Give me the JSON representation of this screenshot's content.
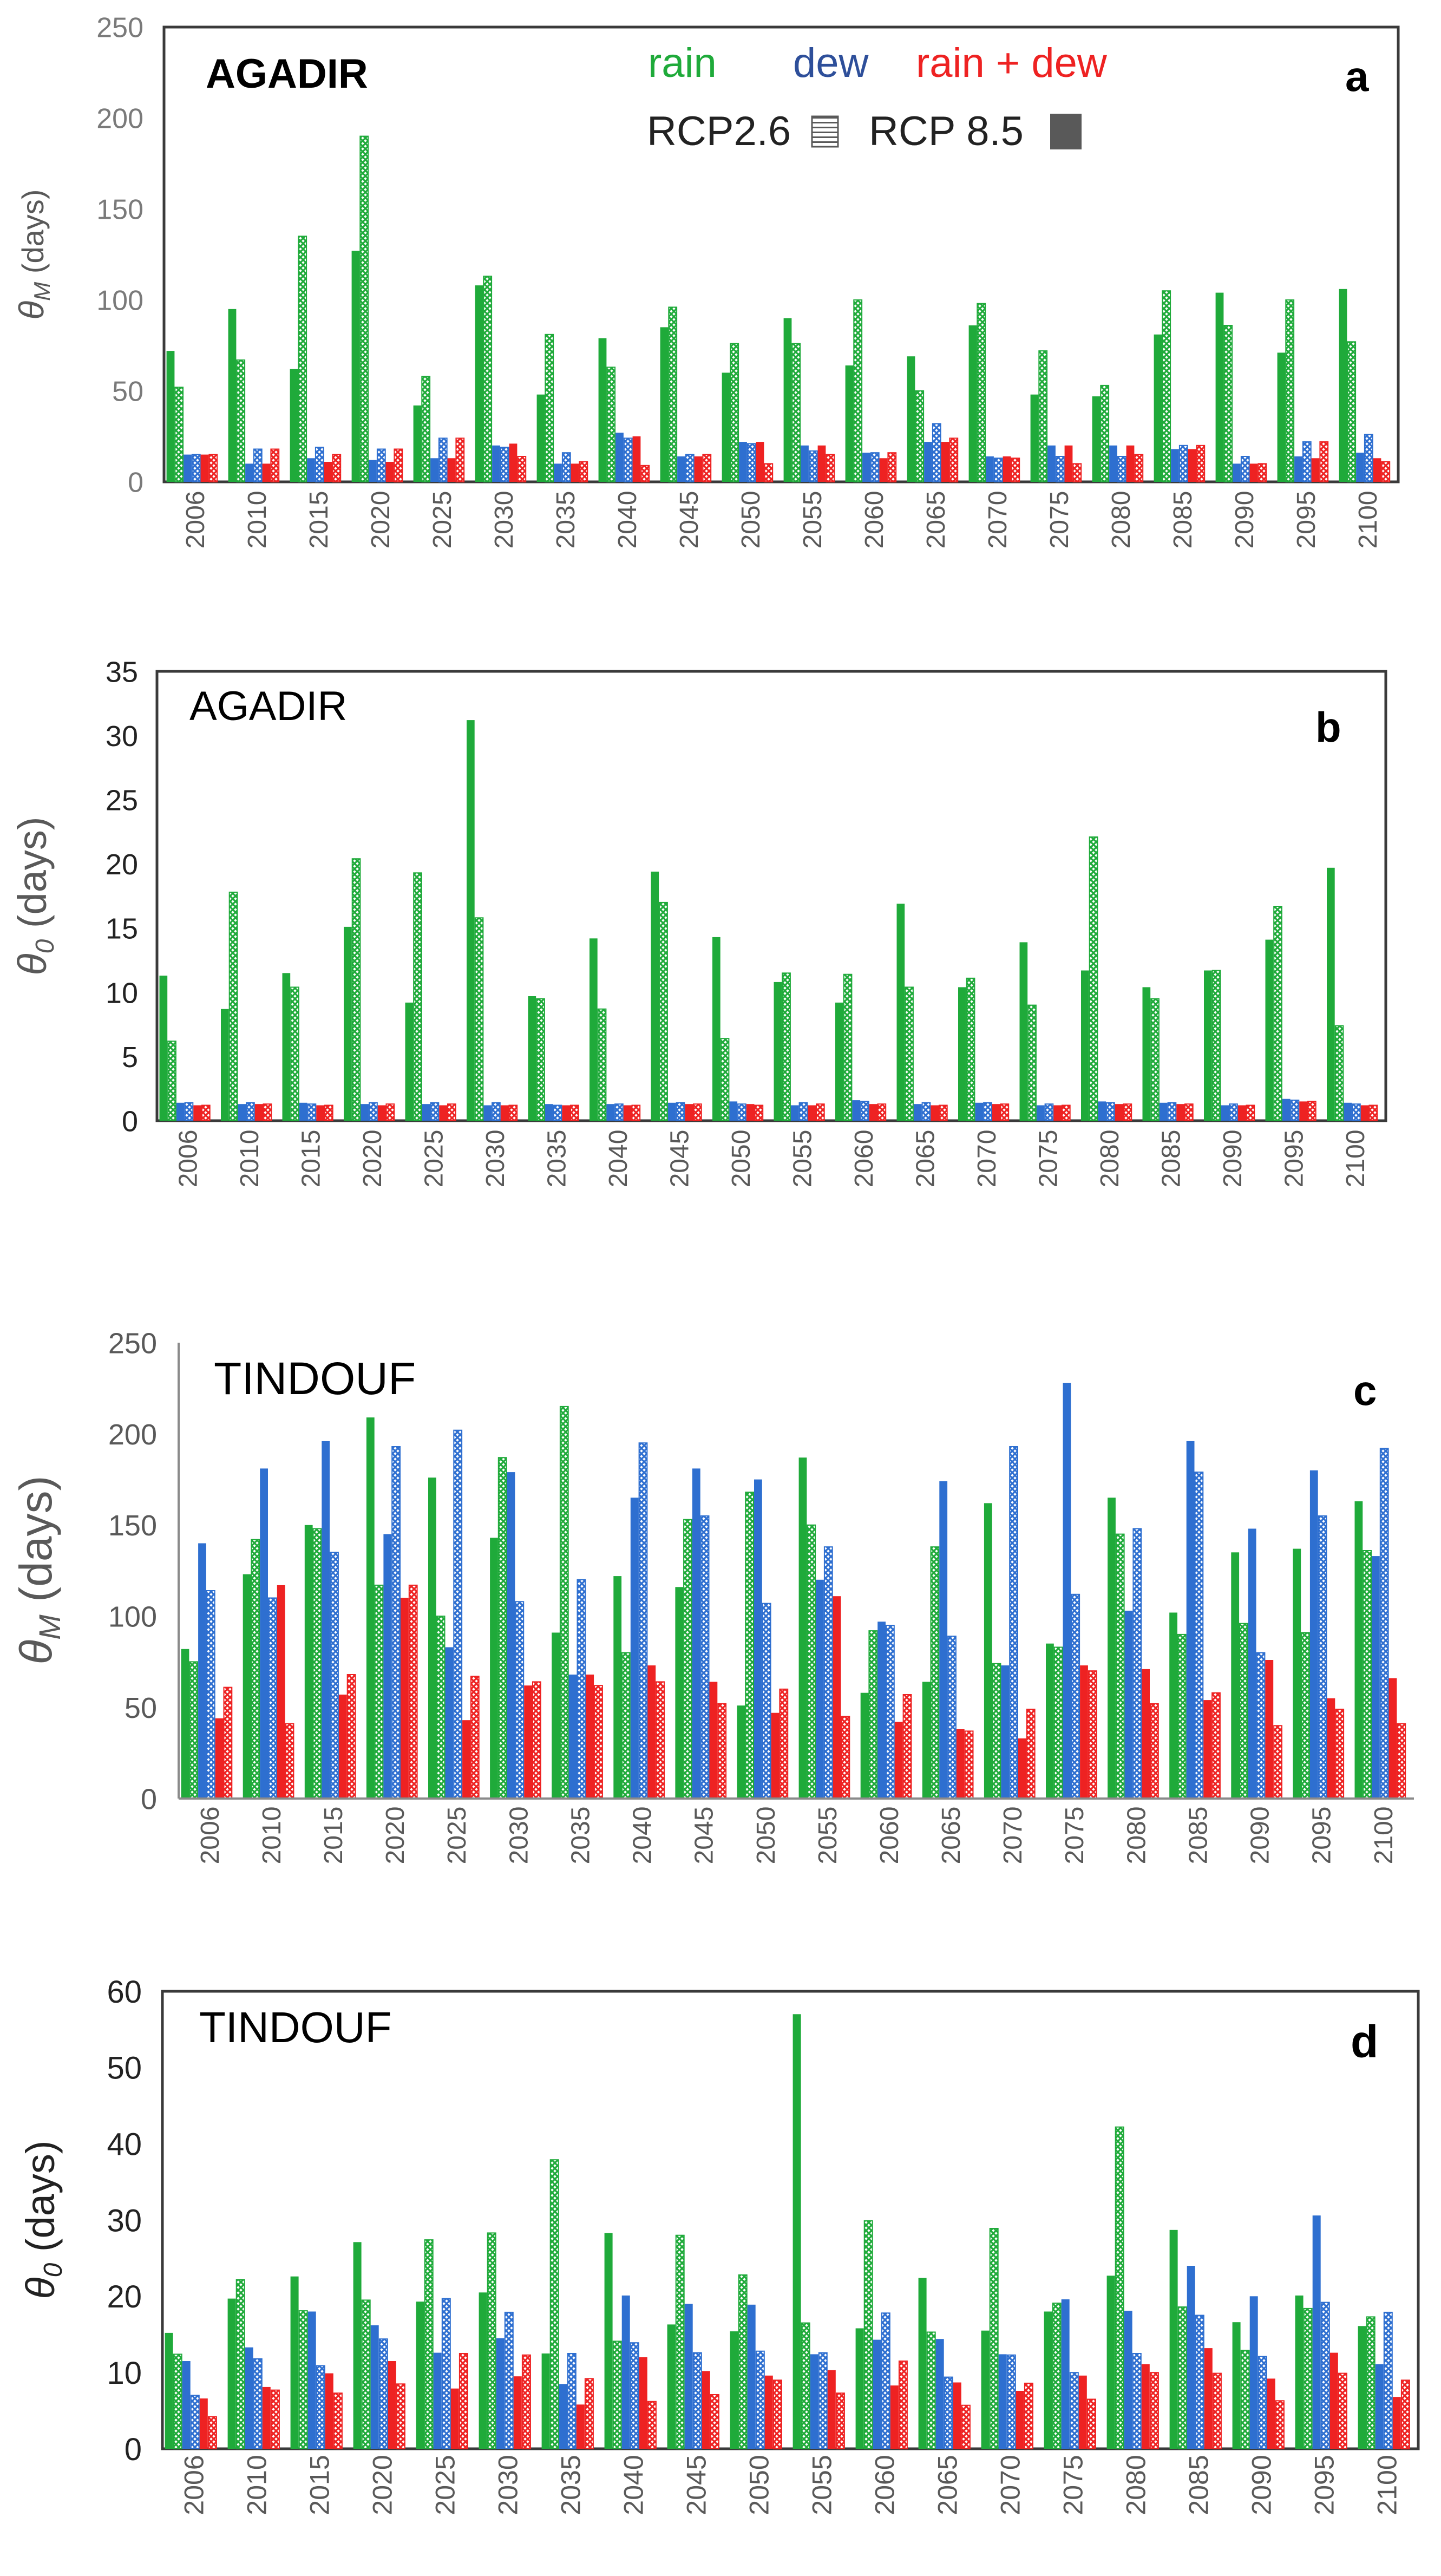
{
  "colors": {
    "rain": "#1faa3a",
    "dew": "#2e6fd0",
    "rain_dew": "#ee2222",
    "legend_square": "#595959"
  },
  "legend": {
    "rain": "rain",
    "dew": "dew",
    "rain_dew": "rain + dew",
    "rcp26": "RCP2.6",
    "rcp85": "RCP 8.5"
  },
  "chart_data": [
    {
      "type": "bar",
      "panel": "a",
      "station": "AGADIR",
      "ylabel_sym": "θ",
      "ylabel_sub": "M",
      "ylabel_unit": " (days)",
      "ylim": [
        0,
        250
      ],
      "yticks": [
        0,
        50,
        100,
        150,
        200,
        250
      ],
      "categories": [
        "2006",
        "2010",
        "2015",
        "2020",
        "2025",
        "2030",
        "2035",
        "2040",
        "2045",
        "2050",
        "2055",
        "2060",
        "2065",
        "2070",
        "2075",
        "2080",
        "2085",
        "2090",
        "2095",
        "2100"
      ],
      "series": [
        {
          "name": "rain RCP 8.5",
          "values": [
            72,
            95,
            62,
            127,
            42,
            108,
            48,
            79,
            85,
            60,
            90,
            64,
            69,
            86,
            48,
            47,
            81,
            104,
            71,
            106
          ]
        },
        {
          "name": "rain RCP2.6",
          "values": [
            52,
            67,
            135,
            190,
            58,
            113,
            81,
            63,
            96,
            76,
            76,
            100,
            50,
            98,
            72,
            53,
            105,
            86,
            100,
            77
          ]
        },
        {
          "name": "dew RCP 8.5",
          "values": [
            15,
            10,
            13,
            12,
            13,
            20,
            10,
            27,
            14,
            22,
            20,
            16,
            22,
            14,
            20,
            20,
            18,
            10,
            14,
            16
          ]
        },
        {
          "name": "dew RCP2.6",
          "values": [
            15,
            18,
            19,
            18,
            24,
            19,
            16,
            24,
            15,
            21,
            17,
            16,
            32,
            13,
            14,
            14,
            20,
            14,
            22,
            26
          ]
        },
        {
          "name": "rain + dew RCP 8.5",
          "values": [
            15,
            10,
            11,
            11,
            13,
            21,
            10,
            25,
            14,
            22,
            20,
            13,
            22,
            14,
            20,
            20,
            18,
            10,
            13,
            13
          ]
        },
        {
          "name": "rain + dew RCP2.6",
          "values": [
            15,
            18,
            15,
            18,
            24,
            14,
            11,
            9,
            15,
            10,
            15,
            16,
            24,
            13,
            10,
            15,
            20,
            10,
            22,
            11
          ]
        }
      ]
    },
    {
      "type": "bar",
      "panel": "b",
      "station": "AGADIR",
      "ylabel_sym": "θ",
      "ylabel_sub": "0",
      "ylabel_unit": " (days)",
      "ylim": [
        0,
        35
      ],
      "yticks": [
        0,
        5,
        10,
        15,
        20,
        25,
        30,
        35
      ],
      "categories": [
        "2006",
        "2010",
        "2015",
        "2020",
        "2025",
        "2030",
        "2035",
        "2040",
        "2045",
        "2050",
        "2055",
        "2060",
        "2065",
        "2070",
        "2075",
        "2080",
        "2085",
        "2090",
        "2095",
        "2100"
      ],
      "series": [
        {
          "name": "rain RCP 8.5",
          "values": [
            11.3,
            8.7,
            11.5,
            15.1,
            9.2,
            31.2,
            9.7,
            14.2,
            19.4,
            14.3,
            10.8,
            9.2,
            16.9,
            10.4,
            13.9,
            11.7,
            10.4,
            11.7,
            14.1,
            19.7
          ]
        },
        {
          "name": "rain RCP2.6",
          "values": [
            6.2,
            17.8,
            10.4,
            20.4,
            19.3,
            15.8,
            9.5,
            8.7,
            17.0,
            6.4,
            11.5,
            11.4,
            10.4,
            11.1,
            9.0,
            22.1,
            9.5,
            11.7,
            16.7,
            7.4
          ]
        },
        {
          "name": "dew RCP 8.5",
          "values": [
            1.4,
            1.3,
            1.4,
            1.3,
            1.3,
            1.2,
            1.3,
            1.3,
            1.4,
            1.5,
            1.2,
            1.6,
            1.3,
            1.4,
            1.2,
            1.5,
            1.4,
            1.2,
            1.7,
            1.4
          ]
        },
        {
          "name": "dew RCP2.6",
          "values": [
            1.4,
            1.4,
            1.3,
            1.4,
            1.4,
            1.4,
            1.2,
            1.3,
            1.4,
            1.3,
            1.4,
            1.5,
            1.4,
            1.4,
            1.3,
            1.4,
            1.4,
            1.3,
            1.6,
            1.3
          ]
        },
        {
          "name": "rain + dew RCP 8.5",
          "values": [
            1.2,
            1.3,
            1.2,
            1.2,
            1.2,
            1.2,
            1.2,
            1.2,
            1.3,
            1.3,
            1.2,
            1.3,
            1.2,
            1.3,
            1.2,
            1.3,
            1.3,
            1.2,
            1.5,
            1.2
          ]
        },
        {
          "name": "rain + dew RCP2.6",
          "values": [
            1.2,
            1.3,
            1.2,
            1.3,
            1.3,
            1.2,
            1.2,
            1.2,
            1.3,
            1.2,
            1.3,
            1.3,
            1.2,
            1.3,
            1.2,
            1.3,
            1.3,
            1.2,
            1.5,
            1.2
          ]
        }
      ]
    },
    {
      "type": "bar",
      "panel": "c",
      "station": "TINDOUF",
      "ylabel_sym": "θ",
      "ylabel_sub": "M",
      "ylabel_unit": " (days)",
      "ylim": [
        0,
        250
      ],
      "yticks": [
        0,
        50,
        100,
        150,
        200,
        250
      ],
      "categories": [
        "2006",
        "2010",
        "2015",
        "2020",
        "2025",
        "2030",
        "2035",
        "2040",
        "2045",
        "2050",
        "2055",
        "2060",
        "2065",
        "2070",
        "2075",
        "2080",
        "2085",
        "2090",
        "2095",
        "2100"
      ],
      "series": [
        {
          "name": "rain RCP 8.5",
          "values": [
            82,
            123,
            150,
            209,
            176,
            143,
            91,
            122,
            116,
            51,
            187,
            58,
            64,
            162,
            85,
            165,
            102,
            135,
            137,
            163
          ]
        },
        {
          "name": "rain RCP2.6",
          "values": [
            75,
            142,
            148,
            117,
            100,
            187,
            215,
            80,
            153,
            168,
            150,
            92,
            138,
            74,
            83,
            145,
            90,
            96,
            91,
            136
          ]
        },
        {
          "name": "dew RCP 8.5",
          "values": [
            140,
            181,
            196,
            145,
            83,
            179,
            68,
            165,
            181,
            175,
            120,
            97,
            174,
            73,
            228,
            103,
            196,
            148,
            180,
            133
          ]
        },
        {
          "name": "dew RCP2.6",
          "values": [
            114,
            110,
            135,
            193,
            202,
            108,
            120,
            195,
            155,
            107,
            138,
            95,
            89,
            193,
            112,
            148,
            179,
            80,
            155,
            192
          ]
        },
        {
          "name": "rain + dew RCP 8.5",
          "values": [
            44,
            117,
            57,
            110,
            43,
            62,
            68,
            73,
            64,
            47,
            111,
            42,
            38,
            33,
            73,
            71,
            54,
            76,
            55,
            66
          ]
        },
        {
          "name": "rain + dew RCP2.6",
          "values": [
            61,
            41,
            68,
            117,
            67,
            64,
            62,
            64,
            52,
            60,
            45,
            57,
            37,
            49,
            70,
            52,
            58,
            40,
            49,
            41
          ]
        }
      ]
    },
    {
      "type": "bar",
      "panel": "d",
      "station": "TINDOUF",
      "ylabel_sym": "θ",
      "ylabel_sub": "0",
      "ylabel_unit": " (days)",
      "ylim": [
        0,
        60
      ],
      "yticks": [
        0,
        10,
        20,
        30,
        40,
        50,
        60
      ],
      "categories": [
        "2006",
        "2010",
        "2015",
        "2020",
        "2025",
        "2030",
        "2035",
        "2040",
        "2045",
        "2050",
        "2055",
        "2060",
        "2065",
        "2070",
        "2075",
        "2080",
        "2085",
        "2090",
        "2095",
        "2100"
      ],
      "series": [
        {
          "name": "rain RCP 8.5",
          "values": [
            15.2,
            19.7,
            22.6,
            27.1,
            19.3,
            20.5,
            12.5,
            28.3,
            16.3,
            15.4,
            57.0,
            15.8,
            22.4,
            15.5,
            18.0,
            22.7,
            28.7,
            16.6,
            20.1,
            16.1
          ]
        },
        {
          "name": "rain RCP2.6",
          "values": [
            12.4,
            22.2,
            18.1,
            19.5,
            27.4,
            28.3,
            37.9,
            14.1,
            28.0,
            22.8,
            16.5,
            29.9,
            15.3,
            28.9,
            19.1,
            42.2,
            18.6,
            12.9,
            18.4,
            17.3
          ]
        },
        {
          "name": "dew RCP 8.5",
          "values": [
            11.5,
            13.3,
            18.0,
            16.2,
            12.6,
            14.5,
            8.5,
            20.1,
            19.0,
            18.9,
            12.4,
            14.3,
            14.4,
            12.4,
            19.6,
            18.1,
            24.0,
            20.0,
            30.6,
            11.1
          ]
        },
        {
          "name": "dew RCP2.6",
          "values": [
            7.0,
            11.8,
            10.9,
            14.4,
            19.7,
            17.9,
            12.5,
            13.9,
            12.6,
            12.8,
            12.6,
            17.8,
            9.4,
            12.3,
            10.0,
            12.5,
            17.5,
            12.1,
            19.2,
            17.9
          ]
        },
        {
          "name": "rain + dew RCP 8.5",
          "values": [
            6.6,
            8.1,
            9.9,
            11.5,
            7.9,
            9.5,
            5.8,
            12.0,
            10.2,
            9.6,
            10.3,
            8.3,
            8.7,
            7.6,
            9.6,
            11.1,
            13.2,
            9.2,
            12.6,
            6.8
          ]
        },
        {
          "name": "rain + dew RCP2.6",
          "values": [
            4.2,
            7.7,
            7.3,
            8.5,
            12.5,
            12.3,
            9.2,
            6.2,
            7.1,
            9.0,
            7.3,
            11.5,
            5.7,
            8.6,
            6.5,
            10.0,
            9.9,
            6.3,
            9.9,
            9.0
          ]
        }
      ]
    }
  ]
}
